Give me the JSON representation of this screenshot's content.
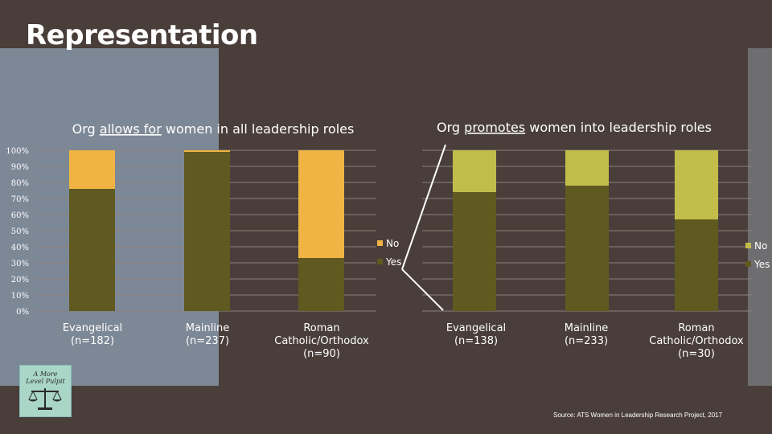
{
  "title": "Representation",
  "source": "Source: ATS Women in Leadership Research Project, 2017",
  "logo": {
    "line1": "A More",
    "line2": "Level Pulpit"
  },
  "colors": {
    "yes_dark": "#605a20",
    "no_left": "#efb443",
    "no_right": "#c2bd4a",
    "grid": "#8a817c"
  },
  "chart_data": [
    {
      "type": "bar",
      "stacked": true,
      "title": "Org allows for women in all leadership roles",
      "title_underlined": "allows for",
      "categories": [
        "Evangelical\n(n=182)",
        "Mainline\n(n=237)",
        "Roman\nCatholic/Orthodox\n(n=90)"
      ],
      "series": [
        {
          "name": "Yes",
          "values": [
            76,
            99,
            33
          ]
        },
        {
          "name": "No",
          "values": [
            24,
            1,
            67
          ]
        }
      ],
      "ylim": [
        0,
        100
      ],
      "yticks": [
        "0%",
        "10%",
        "20%",
        "30%",
        "40%",
        "50%",
        "60%",
        "70%",
        "80%",
        "90%",
        "100%"
      ],
      "legend_labels": [
        "No",
        "Yes"
      ],
      "legend": "right",
      "grid": true
    },
    {
      "type": "bar",
      "stacked": true,
      "title": "Org promotes women into leadership roles",
      "title_underlined": "promotes",
      "categories": [
        "Evangelical\n(n=138)",
        "Mainline\n(n=233)",
        "Roman\nCatholic/Orthodox\n(n=30)"
      ],
      "series": [
        {
          "name": "Yes",
          "values": [
            74,
            78,
            57
          ]
        },
        {
          "name": "No",
          "values": [
            26,
            22,
            43
          ]
        }
      ],
      "ylim": [
        0,
        100
      ],
      "legend_labels": [
        "No",
        "Yes"
      ],
      "legend": "right",
      "grid": true
    }
  ]
}
